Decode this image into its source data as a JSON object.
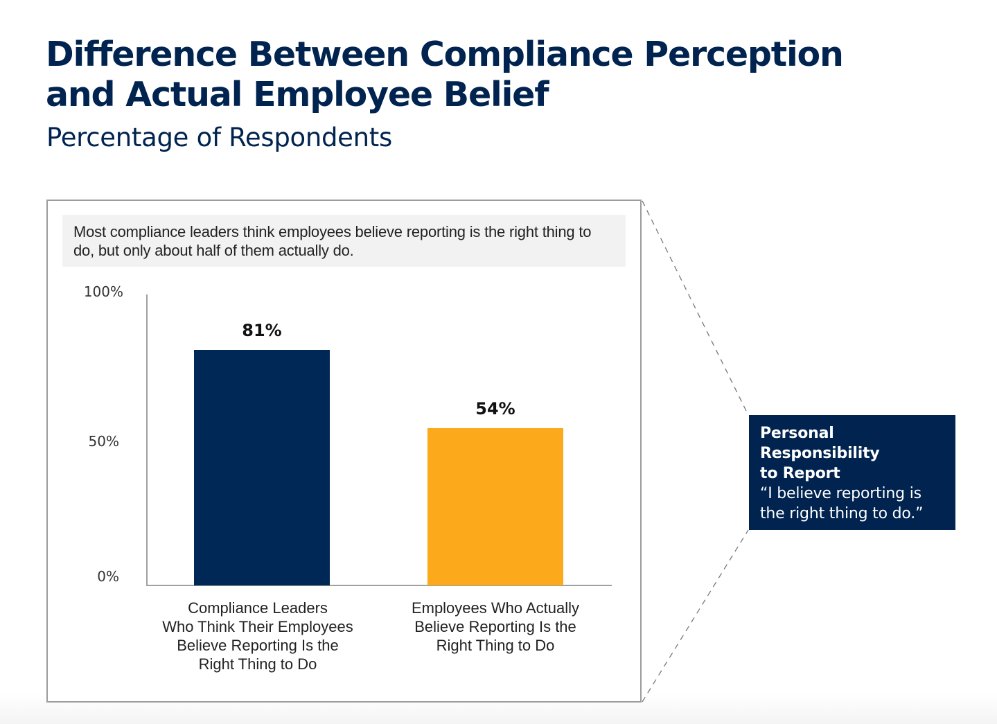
{
  "header": {
    "title_line1": "Difference Between Compliance Perception",
    "title_line2": "and Actual Employee Belief",
    "subtitle": "Percentage of Respondents"
  },
  "panel": {
    "callout": "Most compliance leaders think employees believe reporting is the right thing to do, but only about half of them actually do."
  },
  "legend_box": {
    "title": "Personal\nResponsibility\nto Report",
    "quote": "“I believe  reporting is\nthe right thing to do.”"
  },
  "colors": {
    "navy": "#002856",
    "gold": "#fcaa1c",
    "axis": "#9ea0a1",
    "callout_bg": "#f2f2f2"
  },
  "chart_data": {
    "type": "bar",
    "title": "Difference Between Compliance Perception and Actual Employee Belief",
    "subtitle": "Percentage of Respondents",
    "xlabel": "",
    "ylabel": "",
    "ylim": [
      0,
      100
    ],
    "yticks": [
      0,
      50,
      100
    ],
    "ytick_labels": [
      "0%",
      "50%",
      "100%"
    ],
    "grid": false,
    "categories": [
      "Compliance Leaders\nWho Think Their Employees\nBelieve Reporting Is the\nRight Thing to Do",
      "Employees Who Actually\nBelieve Reporting Is the\nRight Thing to Do"
    ],
    "values": [
      81,
      54
    ],
    "value_labels": [
      "81%",
      "54%"
    ],
    "bar_colors": [
      "#002856",
      "#fcaa1c"
    ],
    "annotation": "Personal Responsibility to Report “I believe reporting is the right thing to do.”"
  }
}
